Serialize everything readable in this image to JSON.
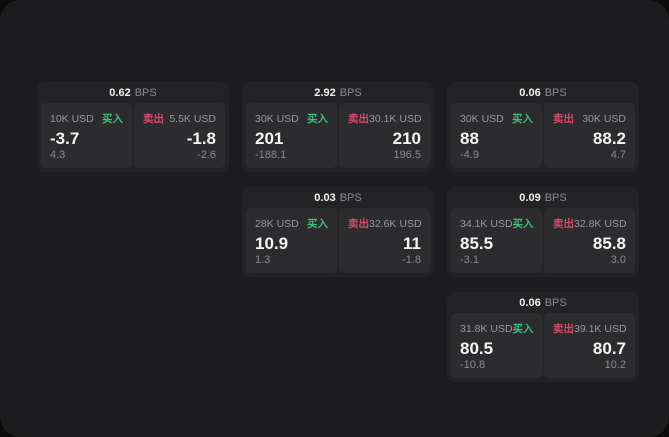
{
  "labels": {
    "bps": "BPS",
    "buy": "买入",
    "sell": "卖出"
  },
  "colors": {
    "page_bg": "#1c1c1e",
    "card_bg": "#232325",
    "panel_bg": "#2c2c2e",
    "buy": "#40bc7c",
    "sell": "#d44a6a",
    "value_text": "#f5f5f6",
    "muted_text": "#8a8a8e"
  },
  "cards": [
    {
      "bps": "0.62",
      "buy": {
        "amount": "10K USD",
        "value": "-3.7",
        "sub": "4.3"
      },
      "sell": {
        "amount": "5.5K USD",
        "value": "-1.8",
        "sub": "-2.6"
      }
    },
    {
      "bps": "2.92",
      "buy": {
        "amount": "30K USD",
        "value": "201",
        "sub": "-188.1"
      },
      "sell": {
        "amount": "30.1K USD",
        "value": "210",
        "sub": "196.5"
      }
    },
    {
      "bps": "0.06",
      "buy": {
        "amount": "30K USD",
        "value": "88",
        "sub": "-4.9"
      },
      "sell": {
        "amount": "30K USD",
        "value": "88.2",
        "sub": "4.7"
      }
    },
    {
      "bps": "0.03",
      "buy": {
        "amount": "28K USD",
        "value": "10.9",
        "sub": "1.3"
      },
      "sell": {
        "amount": "32.6K USD",
        "value": "11",
        "sub": "-1.8"
      }
    },
    {
      "bps": "0.09",
      "buy": {
        "amount": "34.1K USD",
        "value": "85.5",
        "sub": "-3.1"
      },
      "sell": {
        "amount": "32.8K USD",
        "value": "85.8",
        "sub": "3.0"
      }
    },
    {
      "bps": "0.06",
      "buy": {
        "amount": "31.8K USD",
        "value": "80.5",
        "sub": "-10.8"
      },
      "sell": {
        "amount": "39.1K USD",
        "value": "80.7",
        "sub": "10.2"
      }
    }
  ]
}
